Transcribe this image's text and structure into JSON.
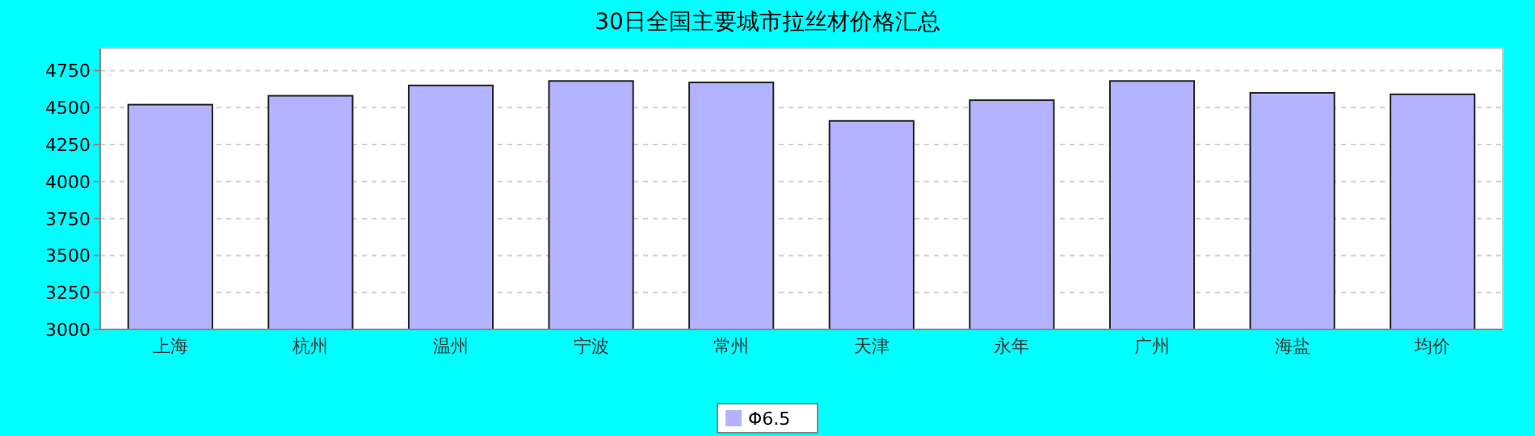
{
  "chart_data": {
    "type": "bar",
    "title": "30日全国主要城市拉丝材价格汇总",
    "categories": [
      "上海",
      "杭州",
      "温州",
      "宁波",
      "常州",
      "天津",
      "永年",
      "广州",
      "海盐",
      "均价"
    ],
    "series": [
      {
        "name": "Φ6.5",
        "color": "#b3b3ff",
        "values": [
          4520,
          4580,
          4650,
          4680,
          4670,
          4410,
          4550,
          4680,
          4600,
          4590
        ]
      }
    ],
    "ylim": [
      3000,
      4900
    ],
    "yticks": [
      3000,
      3250,
      3500,
      3750,
      4000,
      4250,
      4500,
      4750
    ],
    "grid": "y",
    "legend": "bottom"
  }
}
